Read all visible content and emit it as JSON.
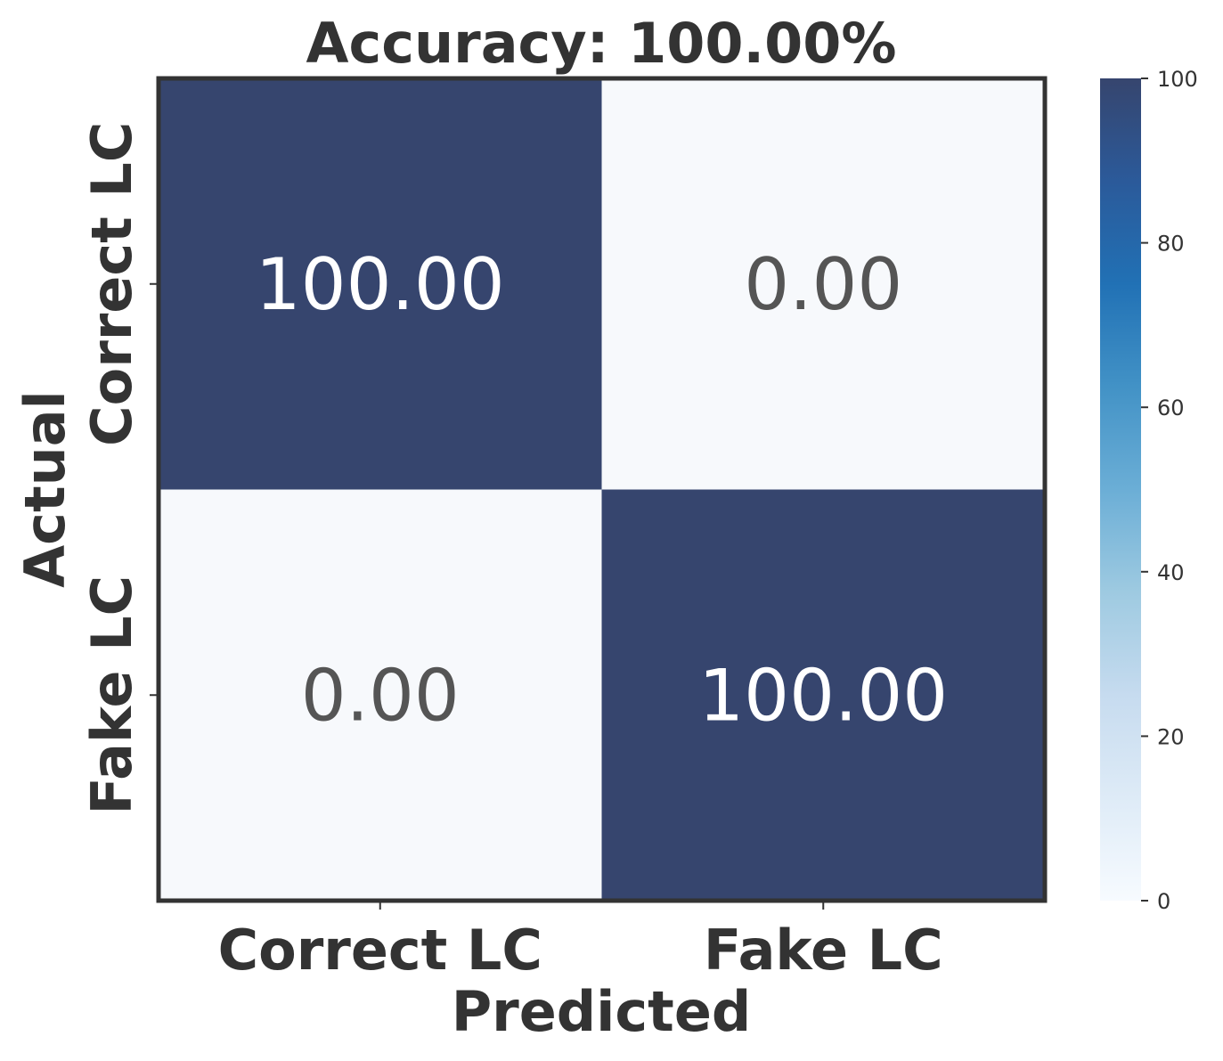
{
  "chart_data": {
    "type": "heatmap",
    "title": "Accuracy: 100.00%",
    "xlabel": "Predicted",
    "ylabel": "Actual",
    "x_categories": [
      "Correct LC",
      "Fake LC"
    ],
    "y_categories": [
      "Correct LC",
      "Fake LC"
    ],
    "values": [
      [
        100.0,
        0.0
      ],
      [
        0.0,
        100.0
      ]
    ],
    "value_labels": [
      [
        "100.00",
        "0.00"
      ],
      [
        "0.00",
        "100.00"
      ]
    ],
    "colorbar": {
      "min": 0,
      "max": 100,
      "ticks": [
        "0",
        "20",
        "40",
        "60",
        "80",
        "100"
      ],
      "colormap": "Blues"
    },
    "colors": {
      "high": "#36456e",
      "low": "#f7f9fc",
      "text_on_dark": "#ffffff",
      "text_on_light": "#555555",
      "frame": "#333333"
    }
  }
}
